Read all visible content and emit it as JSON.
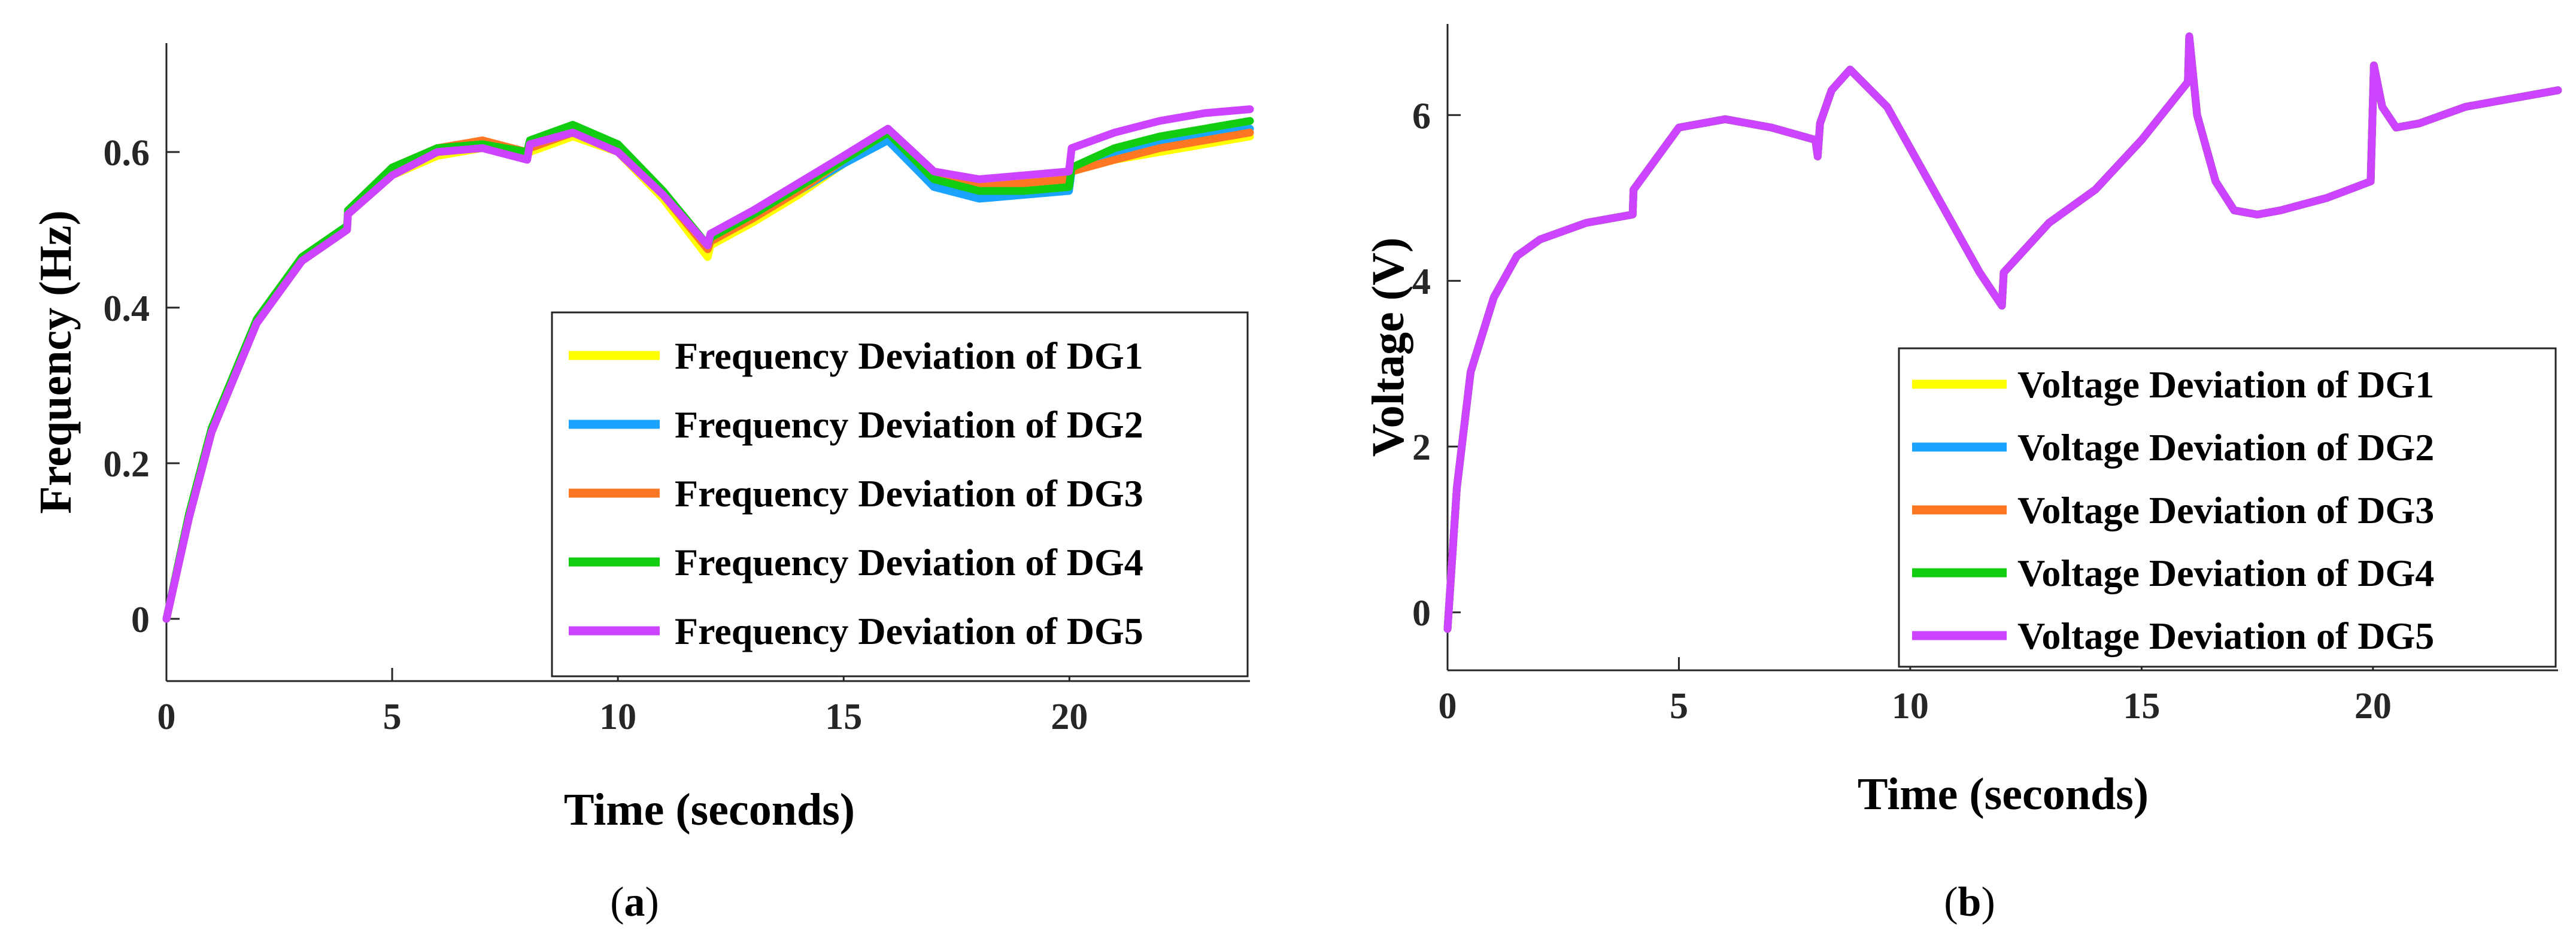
{
  "chart_data": [
    {
      "type": "line",
      "panel": "a",
      "caption_open": "(",
      "caption_label": "a",
      "caption_close": ")",
      "xlabel": "Time (seconds)",
      "ylabel": "Frequency (Hz)",
      "xlim": [
        0,
        24
      ],
      "ylim": [
        -0.08,
        0.74
      ],
      "xticks": [
        0,
        5,
        10,
        15,
        20
      ],
      "yticks": [
        0,
        0.2,
        0.4,
        0.6
      ],
      "xtick_labels": [
        "0",
        "5",
        "10",
        "15",
        "20"
      ],
      "ytick_labels": [
        "0",
        "0.2",
        "0.4",
        "0.6"
      ],
      "legend_position": "bottom-right",
      "series": [
        {
          "name": "Frequency Deviation of DG1",
          "color": "#ffff00",
          "x": [
            0,
            0.5,
            1,
            2,
            3,
            4,
            4.02,
            5,
            6,
            7,
            7.99,
            8.05,
            9,
            10,
            11,
            11.99,
            12.05,
            13,
            14,
            15,
            15.98,
            17,
            18,
            19,
            19.99,
            20.05,
            21,
            22,
            23,
            24
          ],
          "y": [
            0,
            0.13,
            0.24,
            0.38,
            0.46,
            0.5,
            0.52,
            0.57,
            0.595,
            0.605,
            0.595,
            0.6,
            0.62,
            0.6,
            0.54,
            0.465,
            0.48,
            0.51,
            0.545,
            0.585,
            0.62,
            0.57,
            0.555,
            0.555,
            0.56,
            0.575,
            0.59,
            0.6,
            0.61,
            0.62
          ]
        },
        {
          "name": "Frequency Deviation of DG2",
          "color": "#1aa3ff",
          "x": [
            0,
            0.5,
            1,
            2,
            3,
            4,
            4.02,
            5,
            6,
            7,
            7.99,
            8.05,
            9,
            10,
            11,
            11.99,
            12.05,
            13,
            14,
            15,
            15.98,
            17,
            18,
            19,
            19.99,
            20.05,
            21,
            22,
            23,
            24
          ],
          "y": [
            0,
            0.13,
            0.24,
            0.38,
            0.46,
            0.5,
            0.52,
            0.575,
            0.6,
            0.61,
            0.6,
            0.61,
            0.63,
            0.605,
            0.545,
            0.48,
            0.49,
            0.52,
            0.55,
            0.585,
            0.615,
            0.555,
            0.54,
            0.545,
            0.55,
            0.575,
            0.595,
            0.61,
            0.62,
            0.63
          ]
        },
        {
          "name": "Frequency Deviation of DG3",
          "color": "#ff7722",
          "x": [
            0,
            0.5,
            1,
            2,
            3,
            4,
            4.02,
            5,
            6,
            7,
            7.99,
            8.05,
            9,
            10,
            11,
            11.99,
            12.05,
            13,
            14,
            15,
            15.98,
            17,
            18,
            19,
            19.99,
            20.05,
            21,
            22,
            23,
            24
          ],
          "y": [
            0,
            0.13,
            0.24,
            0.38,
            0.46,
            0.5,
            0.52,
            0.58,
            0.605,
            0.615,
            0.6,
            0.605,
            0.625,
            0.6,
            0.545,
            0.475,
            0.485,
            0.515,
            0.55,
            0.59,
            0.625,
            0.57,
            0.555,
            0.56,
            0.565,
            0.575,
            0.59,
            0.605,
            0.615,
            0.625
          ]
        },
        {
          "name": "Frequency Deviation of DG4",
          "color": "#11cc11",
          "x": [
            0,
            0.5,
            1,
            2,
            3,
            4,
            4.02,
            5,
            6,
            7,
            7.99,
            8.05,
            9,
            10,
            11,
            11.99,
            12.05,
            13,
            14,
            15,
            15.98,
            17,
            18,
            19,
            19.99,
            20.05,
            21,
            22,
            23,
            24
          ],
          "y": [
            0,
            0.135,
            0.245,
            0.385,
            0.465,
            0.505,
            0.525,
            0.58,
            0.605,
            0.61,
            0.6,
            0.615,
            0.635,
            0.61,
            0.55,
            0.48,
            0.49,
            0.52,
            0.555,
            0.59,
            0.625,
            0.565,
            0.55,
            0.55,
            0.555,
            0.58,
            0.605,
            0.62,
            0.63,
            0.64
          ]
        },
        {
          "name": "Frequency Deviation of DG5",
          "color": "#cc44ff",
          "x": [
            0,
            0.5,
            1,
            2,
            3,
            4,
            4.02,
            5,
            6,
            7,
            7.99,
            8.05,
            9,
            10,
            11,
            11.99,
            12.05,
            13,
            14,
            15,
            15.98,
            17,
            18,
            19,
            19.99,
            20.05,
            21,
            22,
            23,
            24
          ],
          "y": [
            0,
            0.13,
            0.24,
            0.38,
            0.46,
            0.5,
            0.52,
            0.57,
            0.6,
            0.605,
            0.59,
            0.61,
            0.625,
            0.6,
            0.545,
            0.48,
            0.495,
            0.525,
            0.56,
            0.595,
            0.63,
            0.575,
            0.565,
            0.57,
            0.575,
            0.605,
            0.625,
            0.64,
            0.65,
            0.655
          ]
        }
      ]
    },
    {
      "type": "line",
      "panel": "b",
      "caption_open": "(",
      "caption_label": "b",
      "caption_close": ")",
      "xlabel": "Time (seconds)",
      "ylabel": "Voltage (V)",
      "xlim": [
        0,
        24
      ],
      "ylim": [
        -0.7,
        7.1
      ],
      "xticks": [
        0,
        5,
        10,
        15,
        20
      ],
      "yticks": [
        0,
        2,
        4,
        6
      ],
      "xtick_labels": [
        "0",
        "5",
        "10",
        "15",
        "20"
      ],
      "ytick_labels": [
        "0",
        "2",
        "4",
        "6"
      ],
      "legend_position": "bottom-right",
      "series": [
        {
          "name": "Voltage Deviation of DG1",
          "color": "#ffff00",
          "x": [
            0,
            0.2,
            0.5,
            1,
            1.5,
            2,
            3,
            4,
            4.02,
            5,
            6,
            7,
            7.95,
            8,
            8.05,
            8.3,
            8.7,
            9.5,
            10.5,
            11.5,
            11.98,
            12.02,
            13,
            14,
            15,
            16,
            16.03,
            16.2,
            16.6,
            17,
            17.5,
            18,
            19,
            19.95,
            20.02,
            20.2,
            20.5,
            21,
            22,
            23,
            24
          ],
          "y": [
            -0.2,
            1.5,
            2.9,
            3.8,
            4.3,
            4.5,
            4.7,
            4.8,
            5.1,
            5.85,
            5.95,
            5.85,
            5.7,
            5.5,
            5.9,
            6.3,
            6.55,
            6.1,
            5.1,
            4.1,
            3.7,
            4.1,
            4.7,
            5.1,
            5.7,
            6.4,
            6.95,
            6.0,
            5.2,
            4.85,
            4.8,
            4.85,
            5.0,
            5.2,
            6.6,
            6.1,
            5.85,
            5.9,
            6.1,
            6.2,
            6.3
          ]
        },
        {
          "name": "Voltage Deviation of DG2",
          "color": "#1aa3ff",
          "x": [
            0,
            0.2,
            0.5,
            1,
            1.5,
            2,
            3,
            4,
            4.02,
            5,
            6,
            7,
            7.95,
            8,
            8.05,
            8.3,
            8.7,
            9.5,
            10.5,
            11.5,
            11.98,
            12.02,
            13,
            14,
            15,
            16,
            16.03,
            16.2,
            16.6,
            17,
            17.5,
            18,
            19,
            19.95,
            20.02,
            20.2,
            20.5,
            21,
            22,
            23,
            24
          ],
          "y": [
            -0.2,
            1.5,
            2.9,
            3.8,
            4.3,
            4.5,
            4.7,
            4.8,
            5.1,
            5.85,
            5.95,
            5.85,
            5.7,
            5.5,
            5.9,
            6.3,
            6.55,
            6.1,
            5.1,
            4.1,
            3.7,
            4.1,
            4.7,
            5.1,
            5.7,
            6.4,
            6.95,
            6.0,
            5.2,
            4.85,
            4.8,
            4.85,
            5.0,
            5.2,
            6.6,
            6.1,
            5.85,
            5.9,
            6.1,
            6.2,
            6.3
          ]
        },
        {
          "name": "Voltage Deviation of DG3",
          "color": "#ff7722",
          "x": [
            0,
            0.2,
            0.5,
            1,
            1.5,
            2,
            3,
            4,
            4.02,
            5,
            6,
            7,
            7.95,
            8,
            8.05,
            8.3,
            8.7,
            9.5,
            10.5,
            11.5,
            11.98,
            12.02,
            13,
            14,
            15,
            16,
            16.03,
            16.2,
            16.6,
            17,
            17.5,
            18,
            19,
            19.95,
            20.02,
            20.2,
            20.5,
            21,
            22,
            23,
            24
          ],
          "y": [
            -0.2,
            1.5,
            2.9,
            3.8,
            4.3,
            4.5,
            4.7,
            4.8,
            5.1,
            5.85,
            5.95,
            5.85,
            5.7,
            5.5,
            5.9,
            6.3,
            6.55,
            6.1,
            5.1,
            4.1,
            3.7,
            4.1,
            4.7,
            5.1,
            5.7,
            6.4,
            6.95,
            6.0,
            5.2,
            4.85,
            4.8,
            4.85,
            5.0,
            5.2,
            6.6,
            6.1,
            5.85,
            5.9,
            6.1,
            6.2,
            6.3
          ]
        },
        {
          "name": "Voltage Deviation of DG4",
          "color": "#11cc11",
          "x": [
            0,
            0.2,
            0.5,
            1,
            1.5,
            2,
            3,
            4,
            4.02,
            5,
            6,
            7,
            7.95,
            8,
            8.05,
            8.3,
            8.7,
            9.5,
            10.5,
            11.5,
            11.98,
            12.02,
            13,
            14,
            15,
            16,
            16.03,
            16.2,
            16.6,
            17,
            17.5,
            18,
            19,
            19.95,
            20.02,
            20.2,
            20.5,
            21,
            22,
            23,
            24
          ],
          "y": [
            -0.2,
            1.5,
            2.9,
            3.8,
            4.3,
            4.5,
            4.7,
            4.8,
            5.1,
            5.85,
            5.95,
            5.85,
            5.7,
            5.5,
            5.9,
            6.3,
            6.55,
            6.1,
            5.1,
            4.1,
            3.7,
            4.1,
            4.7,
            5.1,
            5.7,
            6.4,
            6.95,
            6.0,
            5.2,
            4.85,
            4.8,
            4.85,
            5.0,
            5.2,
            6.6,
            6.1,
            5.85,
            5.9,
            6.1,
            6.2,
            6.3
          ]
        },
        {
          "name": "Voltage Deviation of DG5",
          "color": "#cc44ff",
          "x": [
            0,
            0.2,
            0.5,
            1,
            1.5,
            2,
            3,
            4,
            4.02,
            5,
            6,
            7,
            7.95,
            8,
            8.05,
            8.3,
            8.7,
            9.5,
            10.5,
            11.5,
            11.98,
            12.02,
            13,
            14,
            15,
            16,
            16.03,
            16.2,
            16.6,
            17,
            17.5,
            18,
            19,
            19.95,
            20.02,
            20.2,
            20.5,
            21,
            22,
            23,
            24
          ],
          "y": [
            -0.2,
            1.5,
            2.9,
            3.8,
            4.3,
            4.5,
            4.7,
            4.8,
            5.1,
            5.85,
            5.95,
            5.85,
            5.7,
            5.5,
            5.9,
            6.3,
            6.55,
            6.1,
            5.1,
            4.1,
            3.7,
            4.1,
            4.7,
            5.1,
            5.7,
            6.4,
            6.95,
            6.0,
            5.2,
            4.85,
            4.8,
            4.85,
            5.0,
            5.2,
            6.6,
            6.1,
            5.85,
            5.9,
            6.1,
            6.2,
            6.3
          ]
        }
      ]
    }
  ]
}
